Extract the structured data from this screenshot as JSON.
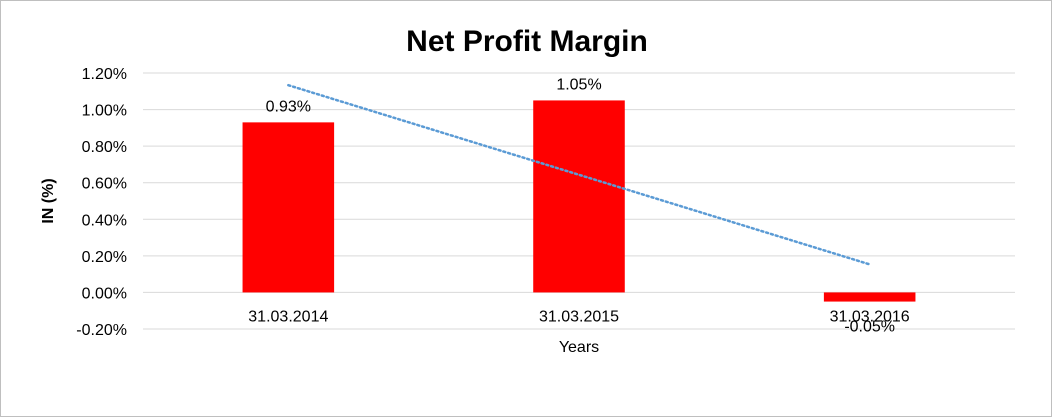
{
  "chart_data": {
    "type": "bar",
    "title": "Net Profit Margin",
    "xlabel": "Years",
    "ylabel": "IN (%)",
    "categories": [
      "31.03.2014",
      "31.03.2015",
      "31.03.2016"
    ],
    "values": [
      0.93,
      1.05,
      -0.05
    ],
    "data_labels": [
      "0.93%",
      "1.05%",
      "-0.05%"
    ],
    "y_ticks": [
      -0.2,
      0.0,
      0.2,
      0.4,
      0.6,
      0.8,
      1.0,
      1.2
    ],
    "y_tick_labels": [
      "-0.20%",
      "0.00%",
      "0.20%",
      "0.40%",
      "0.60%",
      "0.80%",
      "1.00%",
      "1.20%"
    ],
    "ylim": [
      -0.2,
      1.2
    ],
    "grid": true,
    "legend": "none",
    "trendline": {
      "type": "linear",
      "style": "dotted"
    },
    "colors": {
      "bar": "#ff0000",
      "trendline": "#5b9bd5",
      "grid": "#d9d9d9"
    }
  }
}
